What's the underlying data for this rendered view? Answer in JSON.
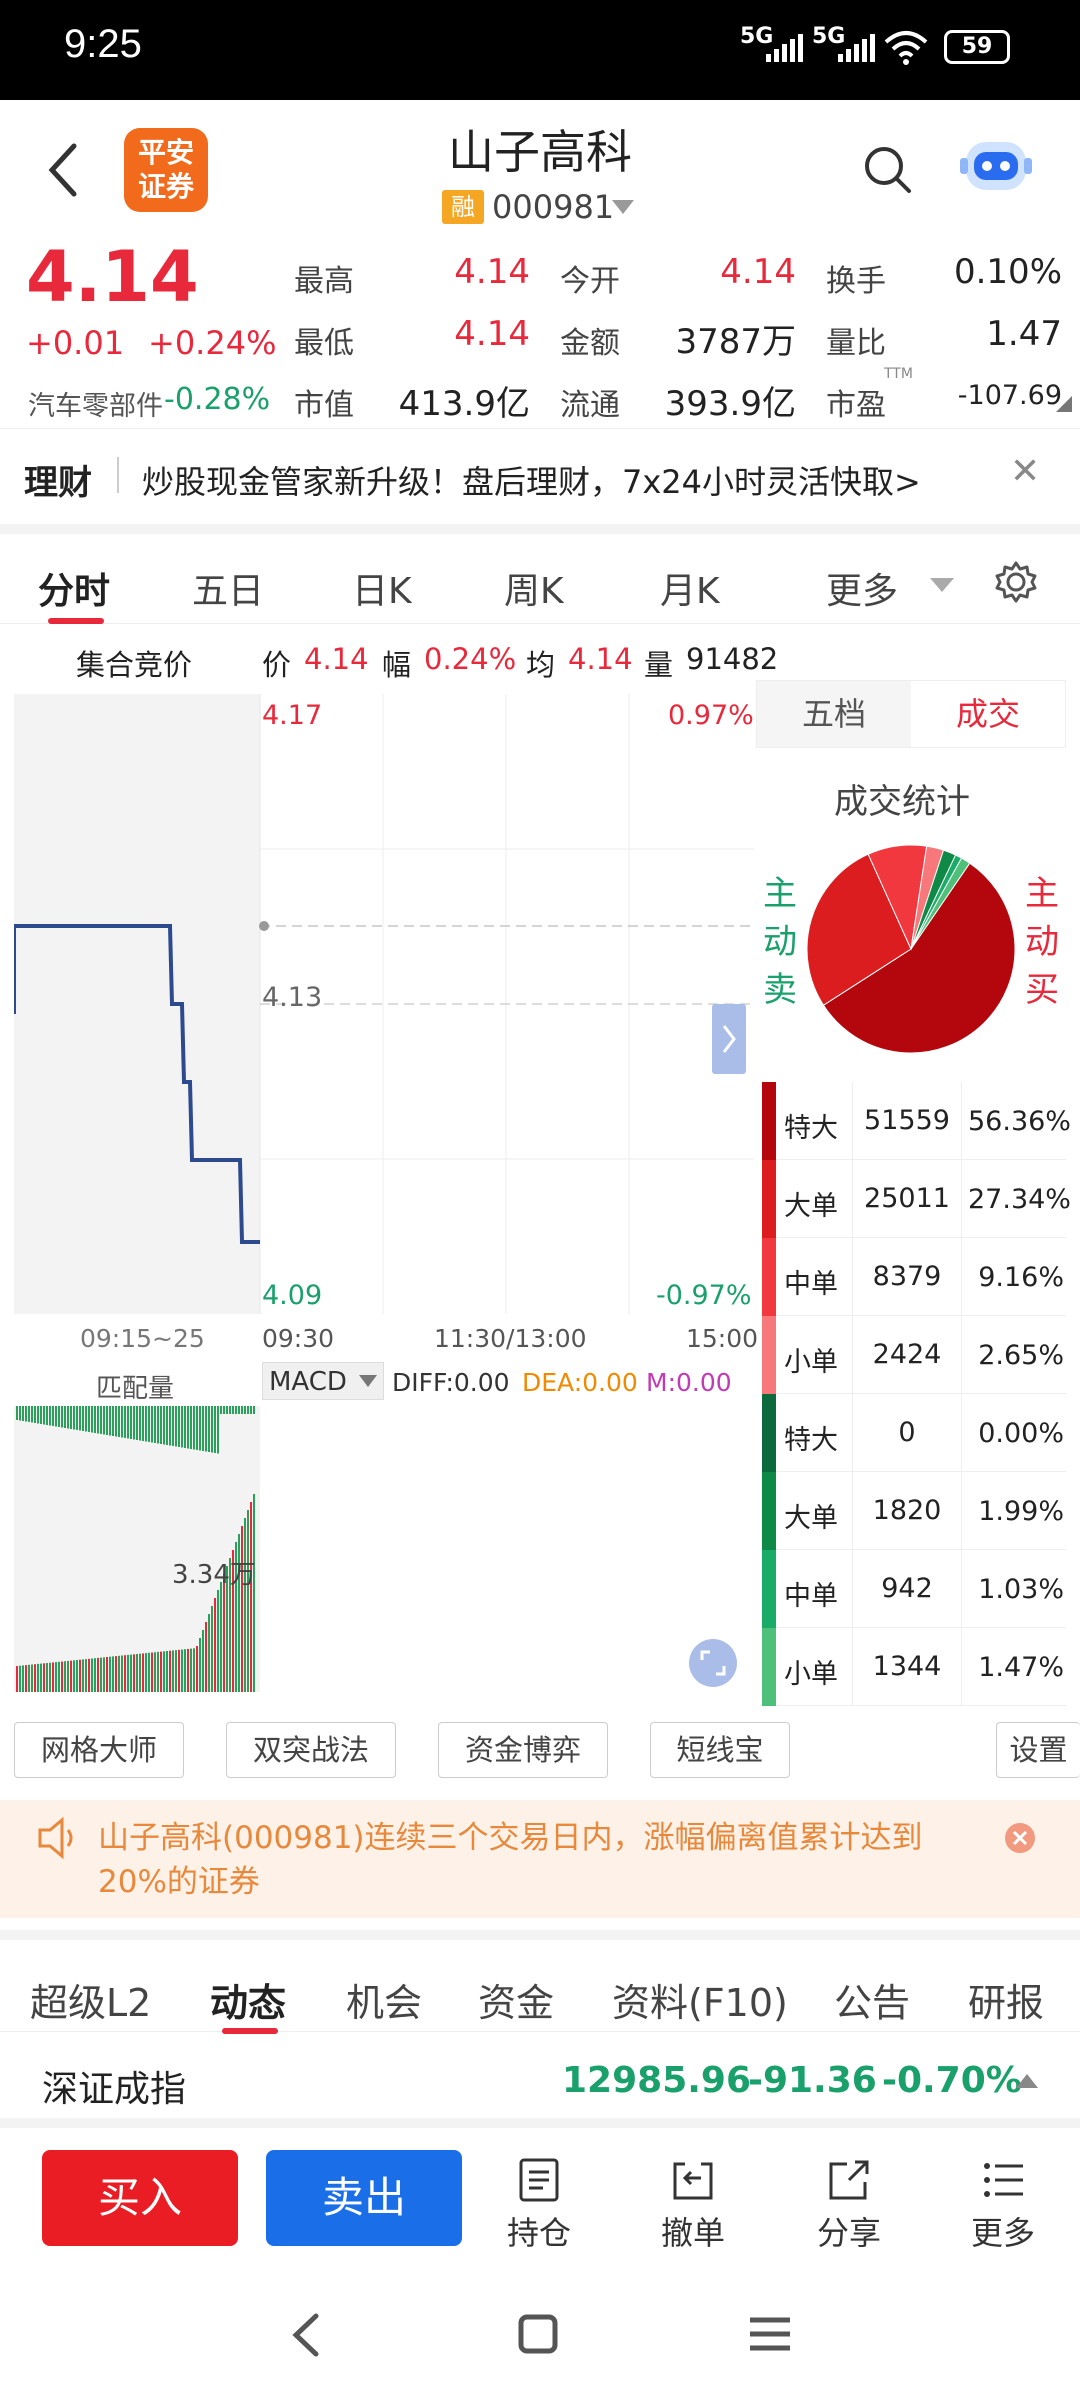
{
  "status": {
    "time": "9:25",
    "net1": "5G",
    "net2": "5G",
    "battery": "59"
  },
  "header": {
    "back": "‹",
    "logo_line1": "平安",
    "logo_line2": "证券",
    "stock_name": "山子高科",
    "badge": "融",
    "code": "000981"
  },
  "quote": {
    "price": "4.14",
    "change": "+0.01",
    "change_pct": "+0.24%",
    "industry": "汽车零部件",
    "industry_pct": "-0.28%",
    "high_label": "最高",
    "high": "4.14",
    "low_label": "最低",
    "low": "4.14",
    "mcap_label": "市值",
    "mcap": "413.9亿",
    "open_label": "今开",
    "open": "4.14",
    "amount_label": "金额",
    "amount": "3787万",
    "float_label": "流通",
    "float": "393.9亿",
    "turnover_label": "换手",
    "turnover": "0.10%",
    "vol_ratio_label": "量比",
    "vol_ratio": "1.47",
    "pe_label": "市盈",
    "pe_sup": "TTM",
    "pe": "-107.69"
  },
  "promo": {
    "tag": "理财",
    "text": "炒股现金管家新升级！盘后理财，7x24小时灵活快取>",
    "close": "✕"
  },
  "tabs1": [
    "分时",
    "五日",
    "日K",
    "周K",
    "月K",
    "更多"
  ],
  "chart": {
    "auction_label": "集合竞价",
    "price_lbl": "价",
    "price_val": "4.14",
    "amp_lbl": "幅",
    "amp_val": "0.24%",
    "avg_lbl": "均",
    "avg_val": "4.14",
    "vol_lbl": "量",
    "vol_val": "91482",
    "y_top": "4.17",
    "y_top_pct": "0.97%",
    "y_mid": "4.13",
    "y_bot": "4.09",
    "y_bot_pct": "-0.97%",
    "x_auction": "09:15~25",
    "x_start": "09:30",
    "x_mid": "11:30/13:00",
    "x_end": "15:00",
    "match_label": "匹配量",
    "macd": "MACD",
    "diff": "DIFF:0.00",
    "dea": "DEA:0.00",
    "m": "M:0.00",
    "vol_peak": "3.34万"
  },
  "panel": {
    "tab_a": "五档",
    "tab_b": "成交",
    "title": "成交统计",
    "sell_label": "主动卖",
    "buy_label": "主动买",
    "pie_data": [
      56.36,
      27.34,
      9.16,
      2.65,
      0.0,
      1.99,
      1.03,
      1.47
    ],
    "rows": [
      {
        "name": "特大",
        "vol": "51559",
        "pct": "56.36%",
        "color": "#b3060d"
      },
      {
        "name": "大单",
        "vol": "25011",
        "pct": "27.34%",
        "color": "#dc1d20"
      },
      {
        "name": "中单",
        "vol": "8379",
        "pct": "9.16%",
        "color": "#f2383f"
      },
      {
        "name": "小单",
        "vol": "2424",
        "pct": "2.65%",
        "color": "#f7787a"
      },
      {
        "name": "特大",
        "vol": "0",
        "pct": "0.00%",
        "color": "#0b6a3c"
      },
      {
        "name": "大单",
        "vol": "1820",
        "pct": "1.99%",
        "color": "#0f8a46"
      },
      {
        "name": "中单",
        "vol": "942",
        "pct": "1.03%",
        "color": "#1bab68"
      },
      {
        "name": "小单",
        "vol": "1344",
        "pct": "1.47%",
        "color": "#4ec07a"
      }
    ]
  },
  "tools": [
    "网格大师",
    "双突战法",
    "资金博弈",
    "短线宝",
    "设置"
  ],
  "notice": {
    "text": "山子高科(000981)连续三个交易日内，涨幅偏离值累计达到20%的证券"
  },
  "tabs2": [
    "超级L2",
    "动态",
    "机会",
    "资金",
    "资料(F10)",
    "公告",
    "研报"
  ],
  "index": {
    "name": "深证成指",
    "value": "12985.96",
    "change": "-91.36",
    "pct": "-0.70%"
  },
  "actions": {
    "buy": "买入",
    "sell": "卖出",
    "hold": "持仓",
    "cancel": "撤单",
    "share": "分享",
    "more": "更多"
  },
  "colors": {
    "red": "#e8283b",
    "green": "#1aa06b",
    "blue": "#1a6fe8",
    "line": "#2d4a8f"
  }
}
